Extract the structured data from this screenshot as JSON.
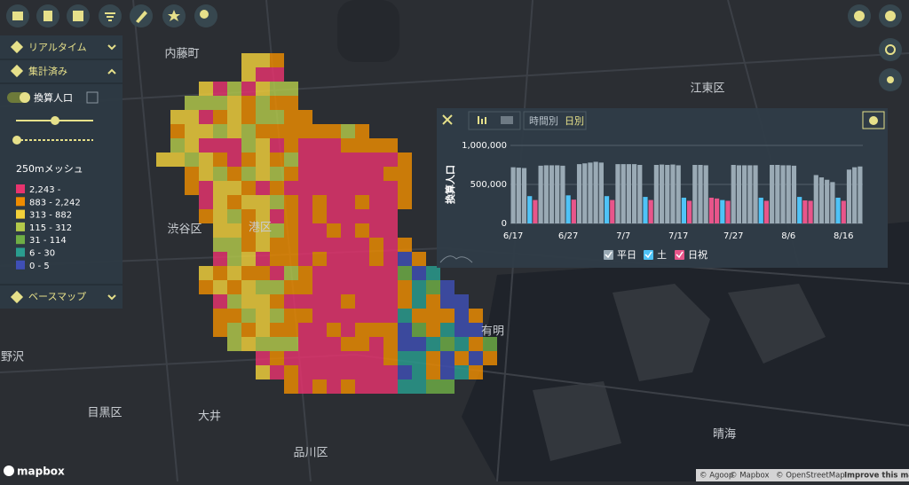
{
  "sidebar": {
    "realtime": "リアルタイム",
    "aggregated": "集計済み",
    "layer": "換算人口",
    "mesh_title": "250mメッシュ",
    "legend": [
      {
        "label": "2,243 -",
        "color": "#e8336e"
      },
      {
        "label": "883 - 2,242",
        "color": "#ee8c00"
      },
      {
        "label": "313 - 882",
        "color": "#f3d13a"
      },
      {
        "label": "115 - 312",
        "color": "#b3c94a"
      },
      {
        "label": "31 - 114",
        "color": "#6fae45"
      },
      {
        "label": "6 - 30",
        "color": "#2a9d8f"
      },
      {
        "label": "0 - 5",
        "color": "#3f4fb5"
      }
    ],
    "basemap": "ベースマップ"
  },
  "map": {
    "labels": [
      "内藤町",
      "江東区",
      "渋谷区",
      "港区",
      "目黒区",
      "品川区",
      "大井",
      "有明",
      "野沢",
      "晴海"
    ]
  },
  "chart_panel": {
    "tabs": [
      "時間別",
      "日別"
    ]
  },
  "chart_data": {
    "type": "bar",
    "y_label": "換算人口",
    "categories": [
      "6/17",
      null,
      null,
      null,
      null,
      null,
      null,
      null,
      null,
      null,
      "6/27",
      null,
      null,
      null,
      null,
      null,
      null,
      null,
      null,
      null,
      "7/7",
      null,
      null,
      null,
      null,
      null,
      null,
      null,
      null,
      null,
      "7/17",
      null,
      null,
      null,
      null,
      null,
      null,
      null,
      null,
      null,
      "7/27",
      null,
      null,
      null,
      null,
      null,
      null,
      null,
      null,
      null,
      "8/6",
      null,
      null,
      null,
      null,
      null,
      null,
      null,
      null,
      null,
      "8/16",
      null,
      null,
      null
    ],
    "series": [
      {
        "name": "平日",
        "color": "#9aaab5",
        "values": [
          720000,
          715000,
          710000,
          null,
          null,
          740000,
          745000,
          745000,
          745000,
          740000,
          null,
          null,
          760000,
          770000,
          780000,
          790000,
          780000,
          null,
          null,
          760000,
          760000,
          760000,
          760000,
          750000,
          null,
          null,
          750000,
          755000,
          750000,
          755000,
          745000,
          null,
          null,
          750000,
          750000,
          745000,
          null,
          null,
          null,
          null,
          750000,
          745000,
          745000,
          745000,
          745000,
          null,
          null,
          750000,
          750000,
          745000,
          745000,
          740000,
          null,
          null,
          null,
          620000,
          590000,
          560000,
          530000,
          null,
          null,
          690000,
          720000,
          730000
        ]
      },
      {
        "name": "土",
        "color": "#4fc3f7",
        "values": [
          null,
          null,
          null,
          350000,
          null,
          null,
          null,
          null,
          null,
          null,
          360000,
          null,
          null,
          null,
          null,
          null,
          null,
          350000,
          null,
          null,
          null,
          null,
          null,
          null,
          340000,
          null,
          null,
          null,
          null,
          null,
          null,
          330000,
          null,
          null,
          null,
          null,
          null,
          null,
          300000,
          null,
          null,
          null,
          null,
          null,
          null,
          330000,
          null,
          null,
          null,
          null,
          null,
          null,
          340000,
          null,
          null,
          null,
          null,
          null,
          null,
          330000,
          null,
          null,
          null,
          null
        ]
      },
      {
        "name": "日祝",
        "color": "#e8558a",
        "values": [
          null,
          null,
          null,
          null,
          300000,
          null,
          null,
          null,
          null,
          null,
          null,
          305000,
          null,
          null,
          null,
          null,
          null,
          null,
          300000,
          null,
          null,
          null,
          null,
          null,
          null,
          300000,
          null,
          null,
          null,
          null,
          null,
          null,
          290000,
          null,
          null,
          null,
          330000,
          320000,
          null,
          290000,
          null,
          null,
          null,
          null,
          null,
          null,
          290000,
          null,
          null,
          null,
          null,
          null,
          null,
          295000,
          290000,
          null,
          null,
          null,
          null,
          null,
          290000,
          null,
          null,
          null
        ]
      }
    ],
    "ylim": [
      0,
      1000000
    ],
    "yticks": [
      0,
      {
        "value": 500000,
        "label": "500,000"
      },
      {
        "value": 1000000,
        "label": "1,000,000"
      }
    ],
    "grid": true,
    "legend": "bottom"
  },
  "attribution": {
    "logo": "mapbox",
    "credits": [
      "© Agoop",
      "© Mapbox",
      "© OpenStreetMap",
      "Improve this map"
    ]
  }
}
